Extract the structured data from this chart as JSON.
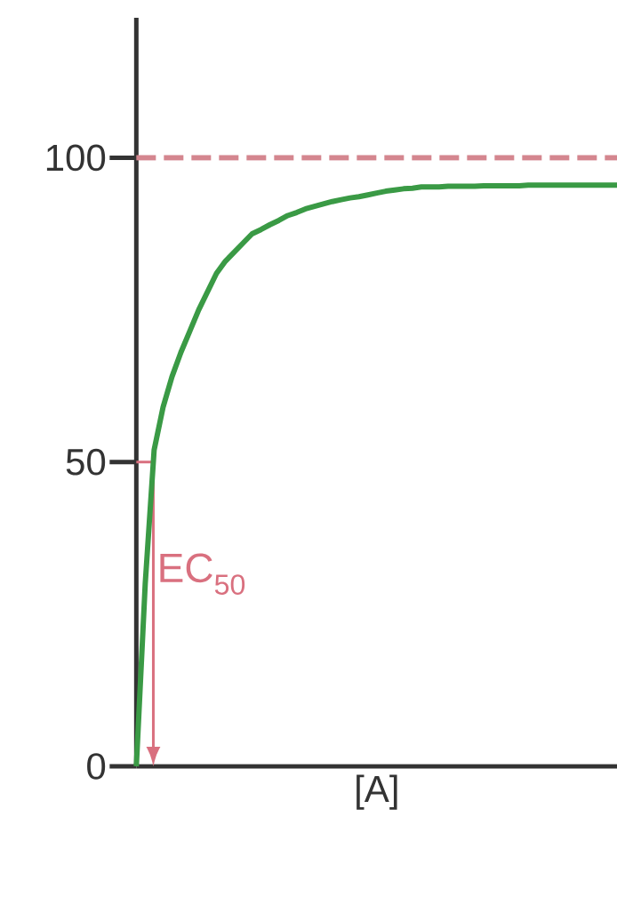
{
  "chart_data": {
    "type": "line",
    "xlabel": "[A]",
    "tick_labels": "y",
    "categories": [
      null,
      null,
      null,
      null,
      null,
      null,
      null,
      null,
      null,
      null,
      null,
      null,
      null,
      null,
      null,
      null,
      null,
      null,
      null,
      null,
      null,
      null,
      null,
      null,
      null,
      null,
      null,
      null,
      null,
      null,
      null,
      null,
      null,
      null,
      null,
      null,
      null,
      null,
      null,
      null,
      null,
      null,
      null,
      null,
      null,
      null,
      null,
      null,
      null,
      null,
      null,
      null,
      null,
      null,
      null
    ],
    "series": [
      {
        "color": "#3a9a45",
        "values": [
          0,
          30,
          52,
          59,
          64,
          68,
          71.5,
          75,
          78,
          81,
          83,
          84.5,
          86,
          87.5,
          88.2,
          89,
          89.7,
          90.5,
          91,
          91.6,
          92,
          92.4,
          92.8,
          93.1,
          93.4,
          93.6,
          93.9,
          94.2,
          94.5,
          94.7,
          94.9,
          95,
          95.2,
          95.2,
          95.2,
          95.3,
          95.3,
          95.3,
          95.3,
          95.4,
          95.4,
          95.4,
          95.4,
          95.4,
          95.5,
          95.5,
          95.5,
          95.5,
          95.5,
          95.5,
          95.5,
          95.5,
          95.5,
          95.5,
          95.5
        ]
      }
    ],
    "ylim": [
      0,
      123
    ],
    "yticks": [
      0,
      50,
      100
    ],
    "line_style": "solid",
    "ref_lines": [
      {
        "axis": "y",
        "value": 100,
        "color": "#d4868f",
        "line_style": "dashed"
      }
    ],
    "annotations": [
      "EC$_{50}$"
    ]
  }
}
